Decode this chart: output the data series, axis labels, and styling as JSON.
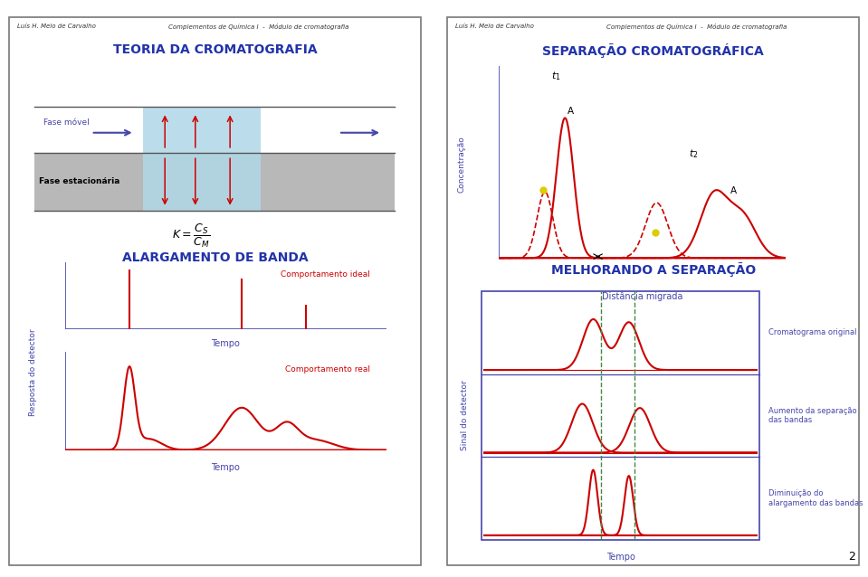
{
  "title_left": "TEORIA DA CROMATOGRAFIA",
  "title_right": "SEPARAÇÃO CROMATOGRÁFICA",
  "title_bottom_left": "ALARGAMENTO DE BANDA",
  "title_bottom_right": "MELHORANDO A SEPARAÇÃO",
  "header_left": "Luís H. Melo de Carvalho",
  "header_center": "Complementos de Química I  -  Módulo de cromatografia",
  "fase_movel": "Fase móvel",
  "fase_estacionaria": "Fase estacionária",
  "comportamento_ideal": "Comportamento ideal",
  "comportamento_real": "Comportamento real",
  "tempo_label": "Tempo",
  "resposta_detector": "Resposta do detector",
  "sinal_detector": "Sinal do detector",
  "distancia_migrada": "Distância migrada",
  "concentracao": "Concentração",
  "cromatograma_original": "Cromatograma original",
  "aumento_separacao": "Aumento da separação\ndas bandas",
  "diminuicao_alargamento": "Diminuição do\nalargamento das bandas",
  "title_color": "#2233aa",
  "red_color": "#cc0000",
  "blue_color": "#4444aa",
  "light_blue": "#b0d8e8",
  "gray_color": "#b8b8b8",
  "page_bg": "#ffffff",
  "border_color": "#777777",
  "green_dashed": "#448844",
  "page_number": "2"
}
